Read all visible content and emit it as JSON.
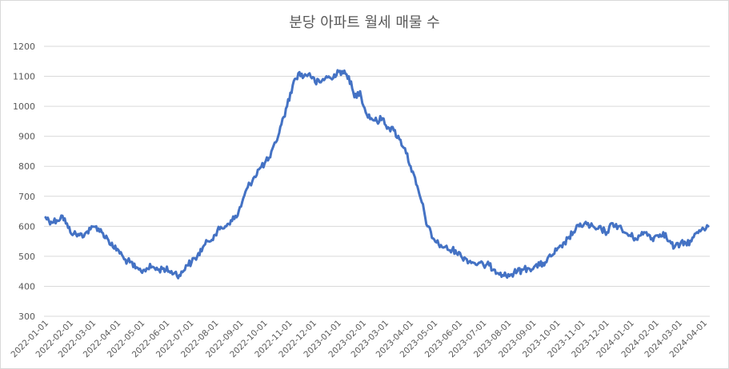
{
  "chart_data": {
    "type": "line",
    "title": "분당 아파트 월세 매물 수",
    "xlabel": "",
    "ylabel": "",
    "ylim": [
      300,
      1200
    ],
    "yticks": [
      300,
      400,
      500,
      600,
      700,
      800,
      900,
      1000,
      1100,
      1200
    ],
    "x_tick_labels": [
      "2022-01-01",
      "2022-02-01",
      "2022-03-01",
      "2022-04-01",
      "2022-05-01",
      "2022-06-01",
      "2022-07-01",
      "2022-08-01",
      "2022-09-01",
      "2022-10-01",
      "2022-11-01",
      "2022-12-01",
      "2023-01-01",
      "2023-02-01",
      "2023-03-01",
      "2023-04-01",
      "2023-05-01",
      "2023-06-01",
      "2023-07-01",
      "2023-08-01",
      "2023-09-01",
      "2023-10-01",
      "2023-11-01",
      "2023-12-01",
      "2024-01-01",
      "2024-02-01",
      "2024-03-01",
      "2024-04-01"
    ],
    "grid": true,
    "legend": "none",
    "color": "#4472c4",
    "series": [
      {
        "x": [
          "2022-01-01",
          "2022-01-08",
          "2022-01-15",
          "2022-01-22",
          "2022-01-29",
          "2022-02-05",
          "2022-02-12",
          "2022-02-19",
          "2022-02-26",
          "2022-03-05",
          "2022-03-12",
          "2022-03-19",
          "2022-03-26",
          "2022-04-02",
          "2022-04-09",
          "2022-04-16",
          "2022-04-23",
          "2022-04-30",
          "2022-05-07",
          "2022-05-14",
          "2022-05-21",
          "2022-05-28",
          "2022-06-04",
          "2022-06-11",
          "2022-06-18",
          "2022-06-25",
          "2022-07-02",
          "2022-07-09",
          "2022-07-16",
          "2022-07-23",
          "2022-07-30",
          "2022-08-06",
          "2022-08-13",
          "2022-08-20",
          "2022-08-27",
          "2022-09-03",
          "2022-09-10",
          "2022-09-17",
          "2022-09-24",
          "2022-10-01",
          "2022-10-08",
          "2022-10-15",
          "2022-10-22",
          "2022-10-29",
          "2022-11-05",
          "2022-11-12",
          "2022-11-19",
          "2022-11-26",
          "2022-12-03",
          "2022-12-10",
          "2022-12-17",
          "2022-12-24",
          "2022-12-31",
          "2023-01-07",
          "2023-01-14",
          "2023-01-21",
          "2023-01-28",
          "2023-02-04",
          "2023-02-11",
          "2023-02-18",
          "2023-02-25",
          "2023-03-04",
          "2023-03-11",
          "2023-03-18",
          "2023-03-25",
          "2023-04-01",
          "2023-04-08",
          "2023-04-15",
          "2023-04-22",
          "2023-04-29",
          "2023-05-06",
          "2023-05-13",
          "2023-05-20",
          "2023-05-27",
          "2023-06-03",
          "2023-06-10",
          "2023-06-17",
          "2023-06-24",
          "2023-07-01",
          "2023-07-08",
          "2023-07-15",
          "2023-07-22",
          "2023-07-29",
          "2023-08-05",
          "2023-08-12",
          "2023-08-19",
          "2023-08-26",
          "2023-09-02",
          "2023-09-09",
          "2023-09-16",
          "2023-09-23",
          "2023-09-30",
          "2023-10-07",
          "2023-10-14",
          "2023-10-21",
          "2023-10-28",
          "2023-11-04",
          "2023-11-11",
          "2023-11-18",
          "2023-11-25",
          "2023-12-02",
          "2023-12-09",
          "2023-12-16",
          "2023-12-23",
          "2023-12-30",
          "2024-01-06",
          "2024-01-13",
          "2024-01-20",
          "2024-01-27",
          "2024-02-03",
          "2024-02-10",
          "2024-02-17",
          "2024-02-24",
          "2024-03-02",
          "2024-03-09",
          "2024-03-16",
          "2024-03-23",
          "2024-03-30",
          "2024-04-06"
        ],
        "values": [
          630,
          615,
          620,
          635,
          595,
          575,
          570,
          575,
          590,
          600,
          580,
          560,
          530,
          520,
          490,
          480,
          460,
          450,
          460,
          465,
          455,
          460,
          450,
          445,
          435,
          470,
          480,
          500,
          530,
          550,
          570,
          590,
          600,
          620,
          630,
          680,
          730,
          760,
          790,
          810,
          830,
          880,
          940,
          1000,
          1070,
          1110,
          1100,
          1110,
          1080,
          1080,
          1100,
          1090,
          1120,
          1110,
          1100,
          1030,
          1050,
          980,
          960,
          950,
          960,
          930,
          920,
          890,
          860,
          800,
          740,
          680,
          600,
          560,
          540,
          530,
          520,
          520,
          500,
          490,
          480,
          475,
          470,
          470,
          455,
          445,
          435,
          440,
          450,
          455,
          460,
          465,
          470,
          480,
          500,
          520,
          530,
          560,
          580,
          600,
          610,
          600,
          590,
          590,
          580,
          610,
          600,
          580,
          570,
          560,
          570,
          580,
          560,
          570,
          580,
          550,
          530,
          540,
          545,
          550,
          580,
          595,
          600
        ]
      }
    ]
  }
}
